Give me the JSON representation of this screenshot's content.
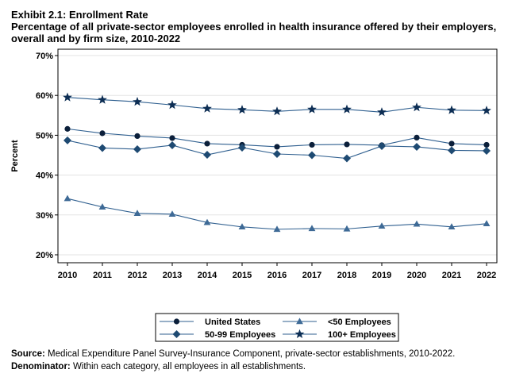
{
  "header": {
    "exhibit": "Exhibit 2.1: Enrollment Rate",
    "subtitle": "Percentage of all private-sector employees enrolled in health insurance offered by their employers, overall and by firm size, 2010-2022"
  },
  "chart_data": {
    "type": "line",
    "ylabel": "Percent",
    "xlabel": "",
    "ylim": [
      20,
      70
    ],
    "yticks": [
      "20%",
      "30%",
      "40%",
      "50%",
      "60%",
      "70%"
    ],
    "categories": [
      "2010",
      "2011",
      "2012",
      "2013",
      "2014",
      "2015",
      "2016",
      "2017",
      "2018",
      "2019",
      "2020",
      "2021",
      "2022"
    ],
    "grid": true,
    "legend_position": "bottom",
    "series": [
      {
        "name": "United States",
        "marker": "circle",
        "color": "#0b1f3a",
        "values": [
          51.6,
          50.5,
          49.8,
          49.3,
          47.9,
          47.6,
          47.1,
          47.6,
          47.7,
          47.5,
          49.4,
          47.9,
          47.6
        ]
      },
      {
        "name": "<50 Employees",
        "marker": "triangle",
        "color": "#3e6a96",
        "values": [
          34.1,
          32.0,
          30.4,
          30.2,
          28.1,
          27.0,
          26.4,
          26.6,
          26.5,
          27.2,
          27.7,
          27.0,
          27.8
        ]
      },
      {
        "name": "50-99 Employees",
        "marker": "diamond",
        "color": "#1e4a72",
        "values": [
          48.7,
          46.8,
          46.5,
          47.5,
          45.1,
          46.9,
          45.3,
          45.0,
          44.2,
          47.3,
          47.1,
          46.2,
          46.1
        ]
      },
      {
        "name": "100+ Employees",
        "marker": "star",
        "color": "#0d2e54",
        "values": [
          59.5,
          58.9,
          58.4,
          57.6,
          56.7,
          56.4,
          56.0,
          56.5,
          56.5,
          55.8,
          57.0,
          56.3,
          56.2
        ]
      }
    ]
  },
  "footer": {
    "source_label": "Source:",
    "source_text": " Medical Expenditure Panel Survey-Insurance Component, private-sector establishments, 2010-2022.",
    "denominator_label": "Denominator:",
    "denominator_text": " Within each category, all employees in all establishments."
  }
}
